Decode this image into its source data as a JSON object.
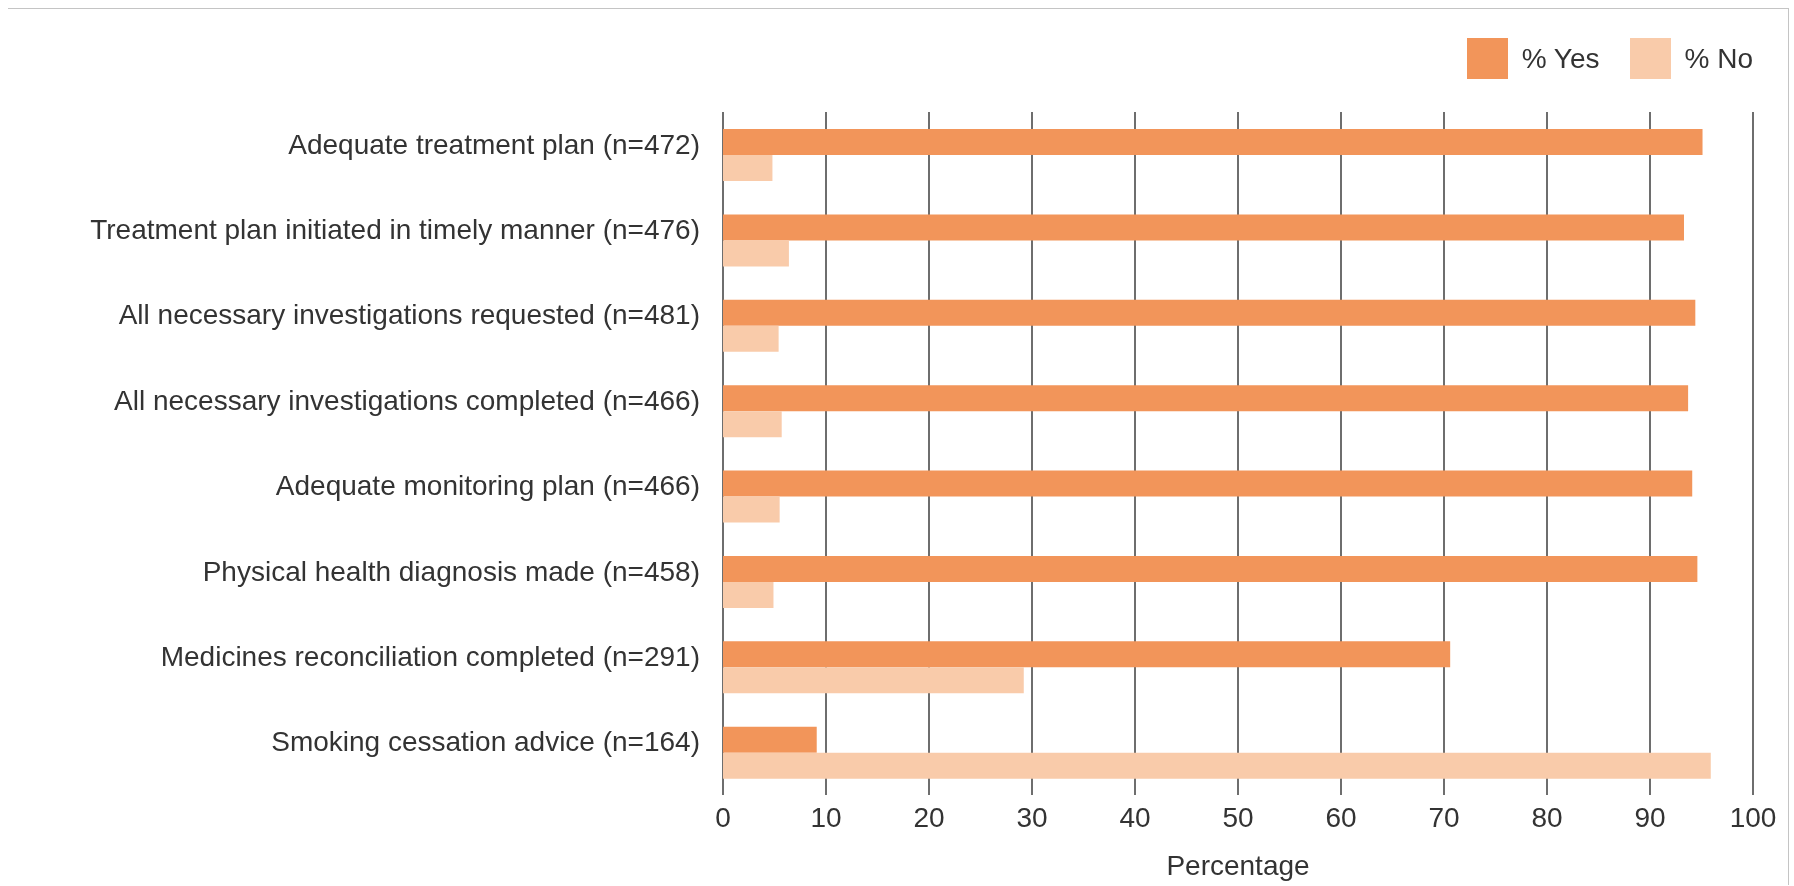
{
  "chart_data": {
    "type": "bar",
    "orientation": "horizontal",
    "categories": [
      "Adequate treatment plan (n=472)",
      "Treatment plan initiated in timely manner (n=476)",
      "All necessary investigations requested (n=481)",
      "All necessary investigations completed (n=466)",
      "Adequate monitoring plan (n=466)",
      "Physical health diagnosis made (n=458)",
      "Medicines reconciliation completed (n=291)",
      "Smoking cessation advice (n=164)"
    ],
    "series": [
      {
        "name": "% Yes",
        "color": "#f2955a",
        "values": [
          95.1,
          93.3,
          94.4,
          93.7,
          94.1,
          94.6,
          70.6,
          9.1
        ]
      },
      {
        "name": "% No",
        "color": "#f9cbaa",
        "values": [
          4.8,
          6.4,
          5.4,
          5.7,
          5.5,
          4.9,
          29.2,
          95.9
        ]
      }
    ],
    "xlabel": "Percentage",
    "xlim": [
      0,
      100
    ],
    "xticks": [
      0,
      10,
      20,
      30,
      40,
      50,
      60,
      70,
      80,
      90,
      100
    ],
    "grid": "x",
    "legend": "top right"
  }
}
